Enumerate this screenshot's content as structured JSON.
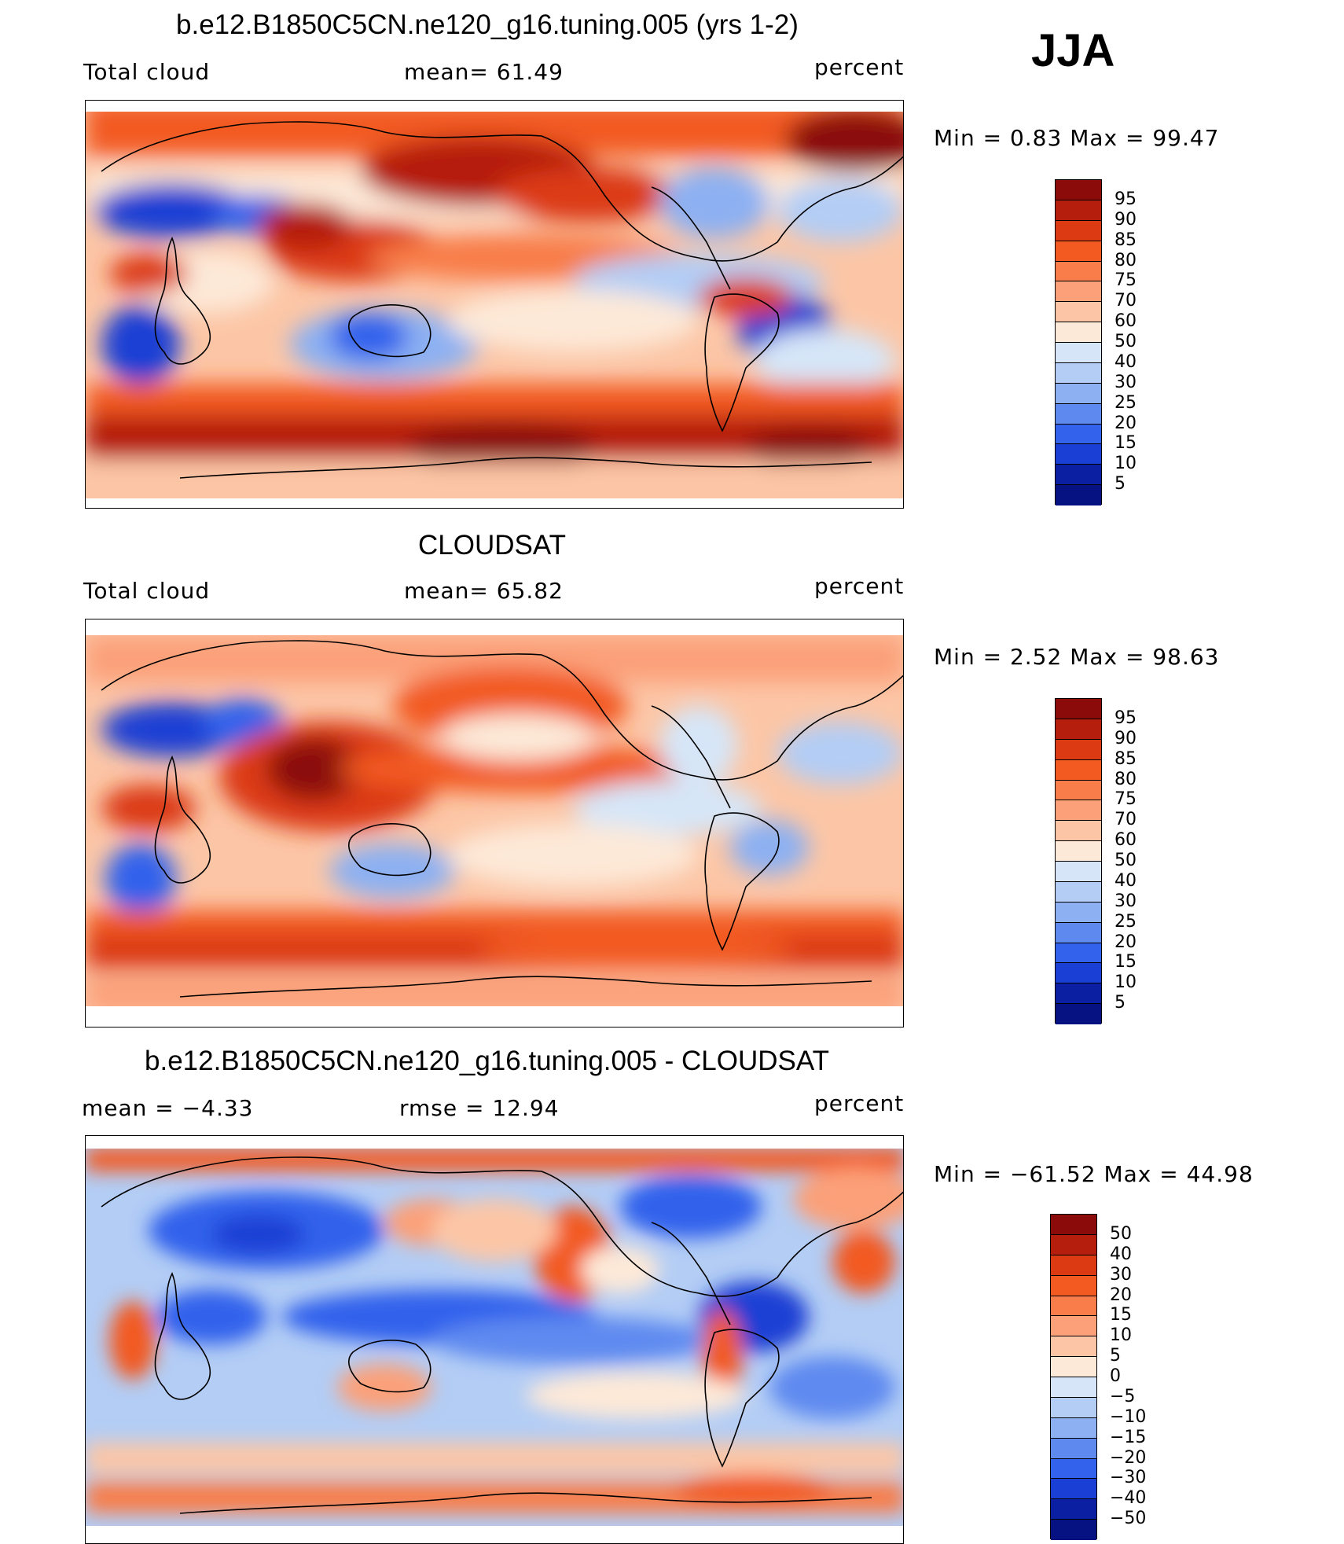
{
  "season": "JJA",
  "panels": [
    {
      "title": "b.e12.B1850C5CN.ne120_g16.tuning.005 (yrs 1-2)",
      "left_label": "Total cloud",
      "center_label": "mean=   61.49",
      "units": "percent",
      "minmax": "Min  =     0.83  Max  =    99.47",
      "colorbar": {
        "labels": [
          "95",
          "90",
          "85",
          "80",
          "75",
          "70",
          "60",
          "50",
          "40",
          "30",
          "25",
          "20",
          "15",
          "10",
          "5"
        ],
        "colors": [
          "#8b0a0a",
          "#b51d0c",
          "#db3a12",
          "#f25a22",
          "#f87d4a",
          "#fba079",
          "#fcc6a6",
          "#fde9d8",
          "#d6e6f8",
          "#b3cdf5",
          "#8cb0f2",
          "#5e8af0",
          "#3362ec",
          "#1a3fd4",
          "#0b1fa3",
          "#071282"
        ]
      }
    },
    {
      "title": "CLOUDSAT",
      "left_label": "Total cloud",
      "center_label": "mean=   65.82",
      "units": "percent",
      "minmax": "Min  =     2.52  Max  =    98.63",
      "colorbar": {
        "labels": [
          "95",
          "90",
          "85",
          "80",
          "75",
          "70",
          "60",
          "50",
          "40",
          "30",
          "25",
          "20",
          "15",
          "10",
          "5"
        ],
        "colors": [
          "#8b0a0a",
          "#b51d0c",
          "#db3a12",
          "#f25a22",
          "#f87d4a",
          "#fba079",
          "#fcc6a6",
          "#fde9d8",
          "#d6e6f8",
          "#b3cdf5",
          "#8cb0f2",
          "#5e8af0",
          "#3362ec",
          "#1a3fd4",
          "#0b1fa3",
          "#071282"
        ]
      }
    },
    {
      "title": "b.e12.B1850C5CN.ne120_g16.tuning.005 - CLOUDSAT",
      "left_label": "mean  =    −4.33",
      "center_label": "rmse  =    12.94",
      "units": "percent",
      "minmax": "Min  =  −61.52  Max  =    44.98",
      "colorbar": {
        "labels": [
          "50",
          "40",
          "30",
          "20",
          "15",
          "10",
          "5",
          "0",
          "−5",
          "−10",
          "−15",
          "−20",
          "−30",
          "−40",
          "−50"
        ],
        "colors": [
          "#8b0a0a",
          "#b51d0c",
          "#db3a12",
          "#f25a22",
          "#f87d4a",
          "#fba079",
          "#fcc6a6",
          "#fde9d8",
          "#d6e6f8",
          "#b3cdf5",
          "#8cb0f2",
          "#5e8af0",
          "#3362ec",
          "#1a3fd4",
          "#0b1fa3",
          "#071282"
        ]
      }
    }
  ]
}
